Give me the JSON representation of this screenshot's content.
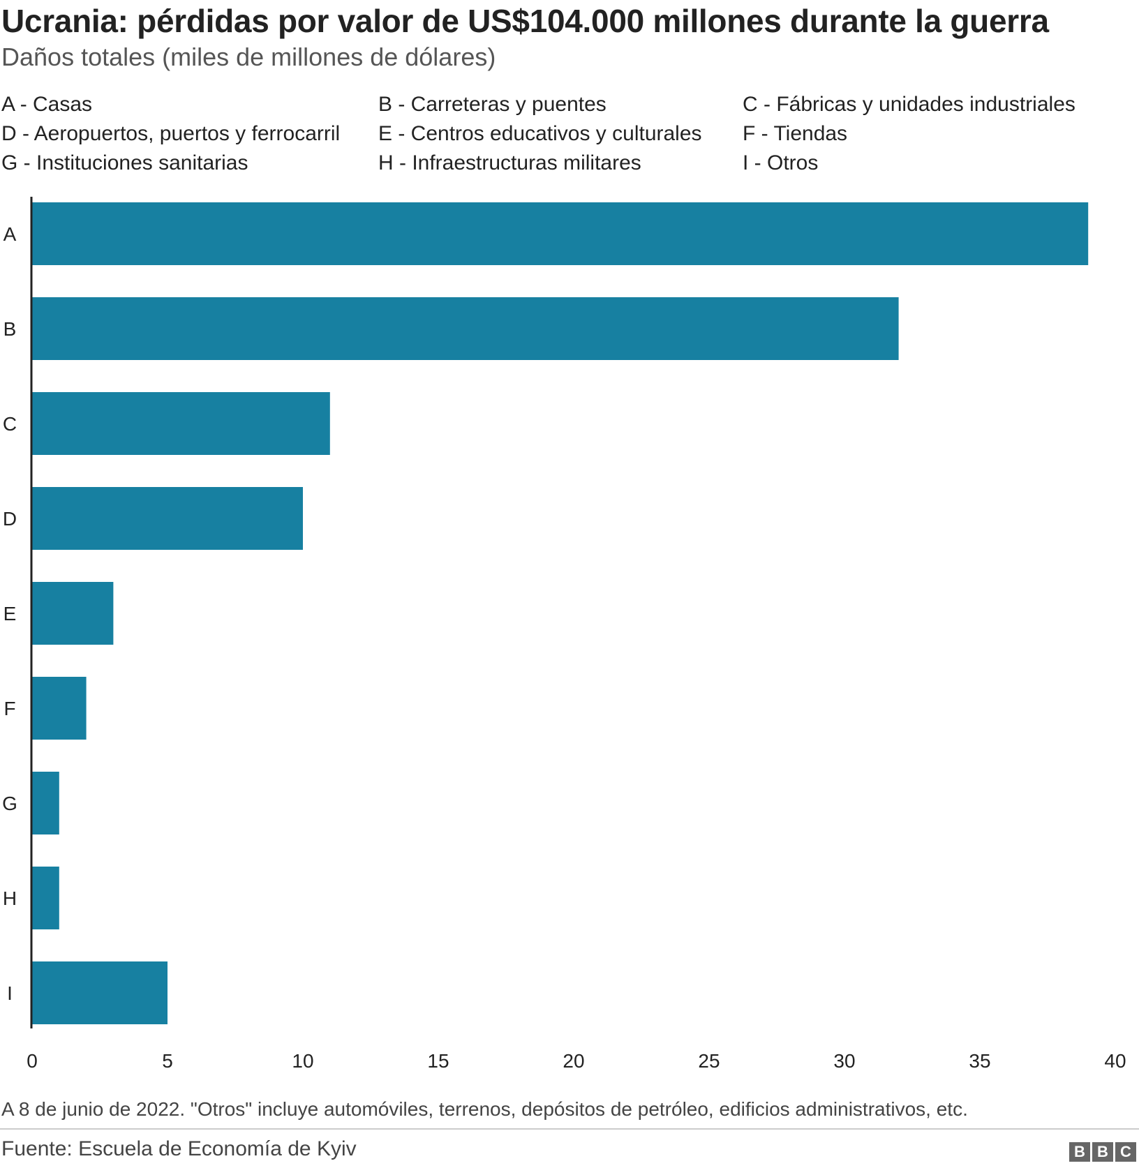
{
  "title": "Ucrania: pérdidas por valor de US$104.000 millones durante la guerra",
  "subtitle": "Daños totales (miles de millones de dólares)",
  "legend": [
    "A - Casas",
    "B - Carreteras y puentes",
    "C - Fábricas y unidades industriales",
    "D - Aeropuertos, puertos y ferrocarril",
    "E - Centros educativos y culturales",
    "F - Tiendas",
    "G - Instituciones sanitarias",
    "H - Infraestructuras militares",
    "I - Otros"
  ],
  "chart_data": {
    "type": "bar",
    "orientation": "horizontal",
    "title": "Ucrania: pérdidas por valor de US$104.000 millones durante la guerra",
    "subtitle": "Daños totales (miles de millones de dólares)",
    "categories": [
      "A",
      "B",
      "C",
      "D",
      "E",
      "F",
      "G",
      "H",
      "I"
    ],
    "values": [
      39,
      32,
      11,
      10,
      3,
      2,
      1,
      1,
      5
    ],
    "xlim": [
      0,
      40
    ],
    "xticks": [
      0,
      5,
      10,
      15,
      20,
      25,
      30,
      35,
      40
    ],
    "bar_color": "#1780a1",
    "grid": false
  },
  "footnote": "A 8 de junio de 2022. \"Otros\" incluye automóviles, terrenos, depósitos de petróleo, edificios administrativos, etc.",
  "source": "Fuente: Escuela de Economía de Kyiv",
  "logo": [
    "B",
    "B",
    "C"
  ]
}
